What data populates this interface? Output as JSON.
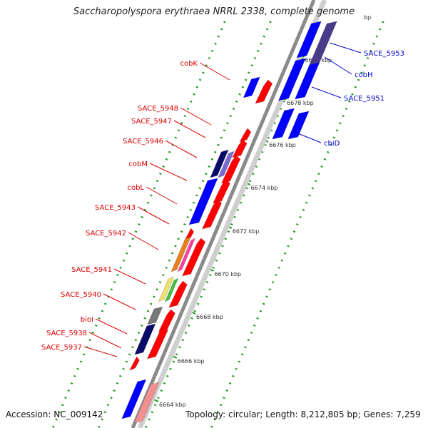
{
  "header": {
    "title": "Saccharopolyspora erythraea NRRL 2338, complete genome",
    "bp_unit": "bp"
  },
  "footer": {
    "accession": "Accession: NC_009142",
    "topology": "Topology: circular; Length: 8,212,805 bp; Genes: 7,259"
  },
  "map": {
    "ticks": [
      {
        "label": "6680 kbp"
      },
      {
        "label": "6678 kbp"
      },
      {
        "label": "6676 kbp"
      },
      {
        "label": "6674 kbp"
      },
      {
        "label": "6672 kbp"
      },
      {
        "label": "6670 kbp"
      },
      {
        "label": "6668 kbp"
      },
      {
        "label": "6666 kbp"
      },
      {
        "label": "6664 kbp"
      }
    ],
    "forward_gene_labels": [
      {
        "label": "SACE_5953",
        "color": "#0000cc"
      },
      {
        "label": "cobH",
        "color": "#0000cc"
      },
      {
        "label": "SACE_5951",
        "color": "#0000cc"
      },
      {
        "label": "cbiD",
        "color": "#0000cc"
      }
    ],
    "reverse_gene_labels": [
      {
        "label": "cobK",
        "color": "#dd0000"
      },
      {
        "label": "SACE_5948",
        "color": "#dd0000"
      },
      {
        "label": "SACE_5947",
        "color": "#dd0000"
      },
      {
        "label": "SACE_5946",
        "color": "#dd0000"
      },
      {
        "label": "cobM",
        "color": "#dd0000"
      },
      {
        "label": "cobL",
        "color": "#dd0000"
      },
      {
        "label": "SACE_5943",
        "color": "#dd0000"
      },
      {
        "label": "SACE_5942",
        "color": "#dd0000"
      },
      {
        "label": "SACE_5941",
        "color": "#dd0000"
      },
      {
        "label": "SACE_5940",
        "color": "#dd0000"
      },
      {
        "label": "bioI",
        "color": "#dd0000"
      },
      {
        "label": "SACE_5938",
        "color": "#dd0000"
      },
      {
        "label": "SACE_5937",
        "color": "#dd0000"
      }
    ],
    "colors": {
      "forward_gene": "#0000ff",
      "reverse_gene": "#ff0000",
      "backbone": "#8a8a8a",
      "dotted_guide": "#1a9a1a",
      "forward_label": "#0000cc",
      "reverse_label": "#dd0000"
    }
  }
}
